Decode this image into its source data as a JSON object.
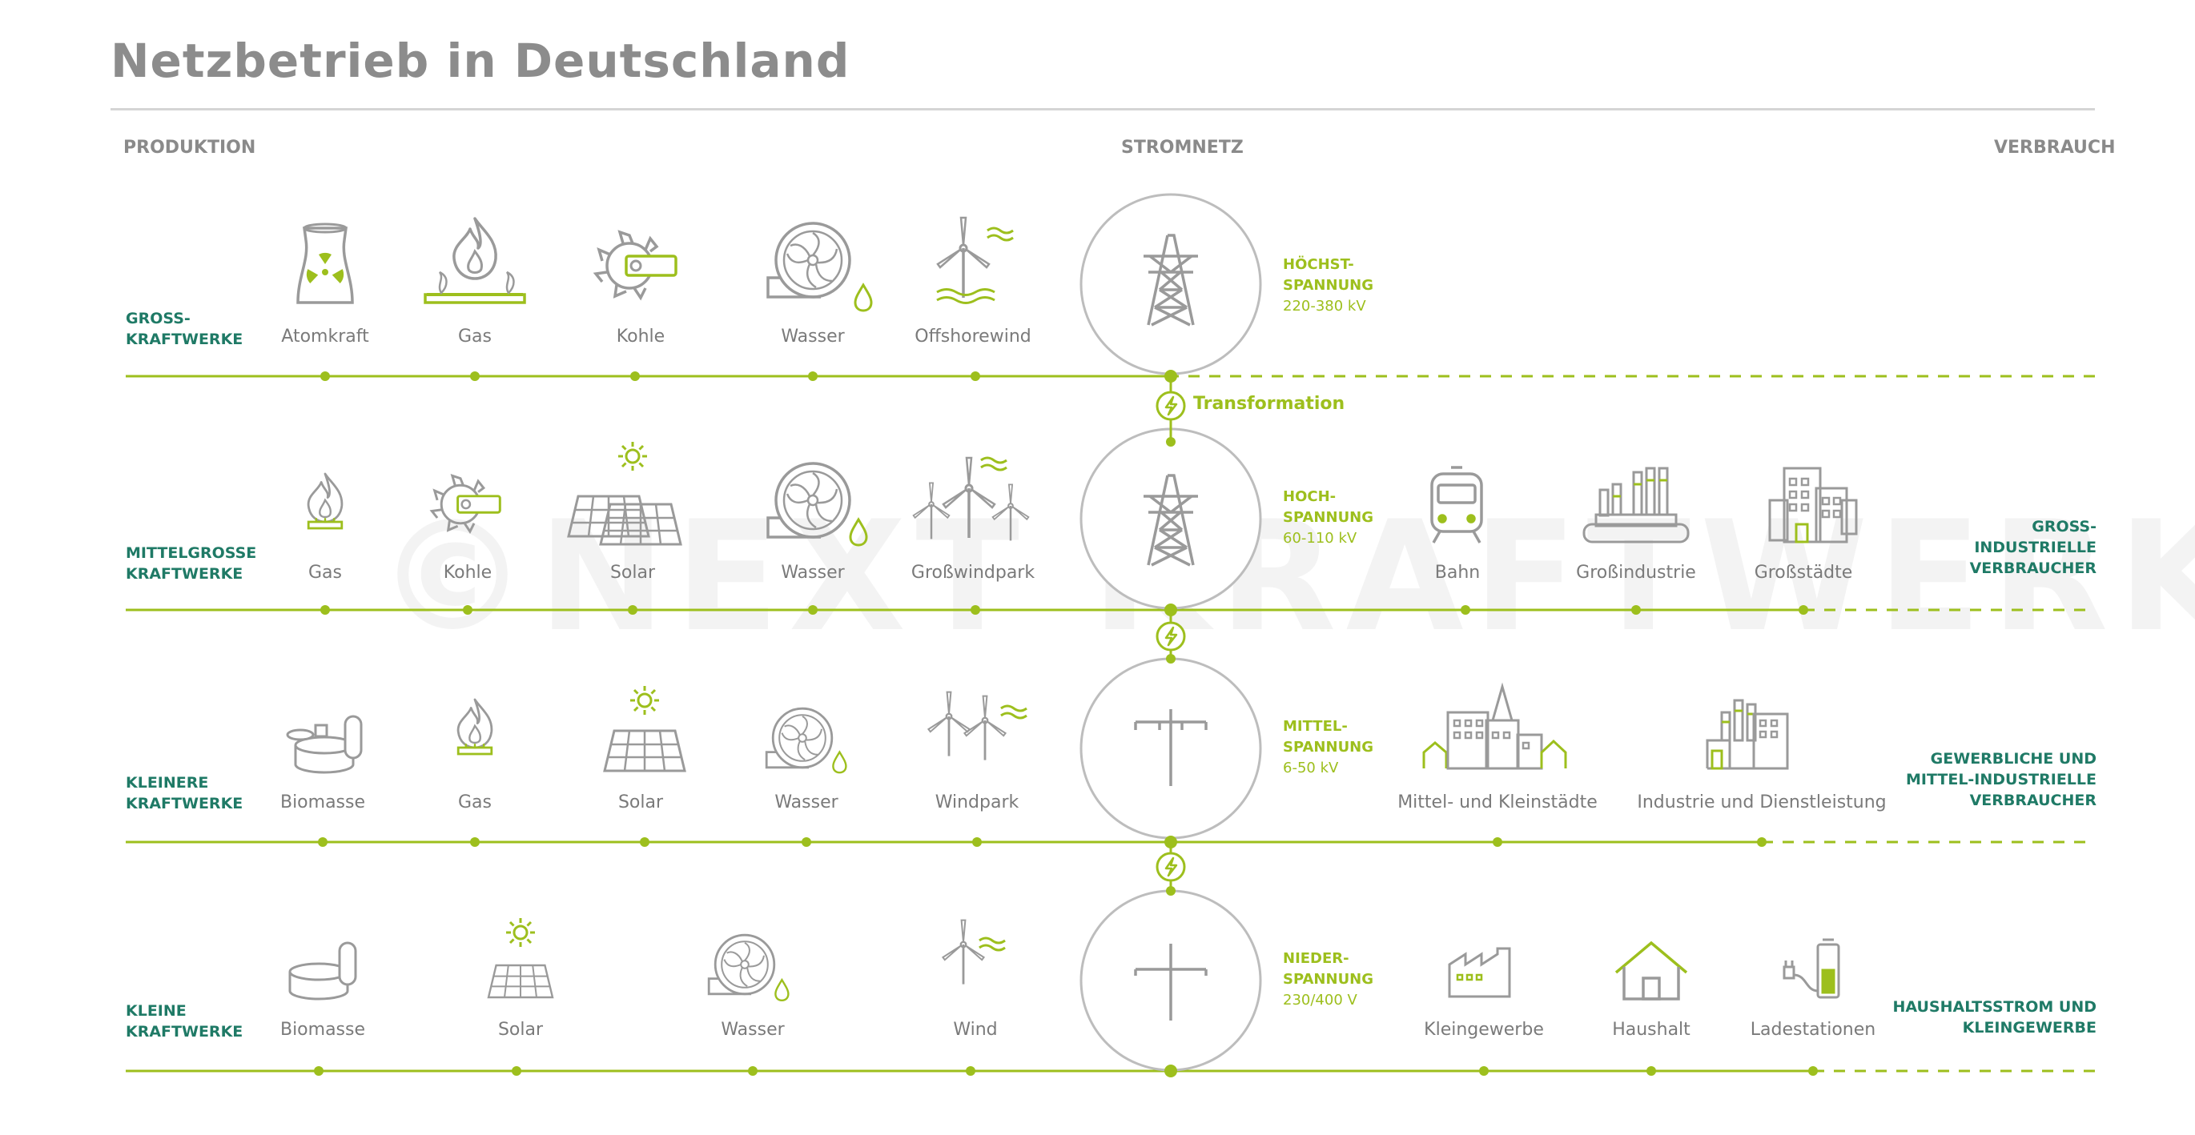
{
  "title": "Netzbetrieb in Deutschland",
  "columns": {
    "production": "PRODUKTION",
    "grid": "STROMNETZ",
    "consumption": "VERBRAUCH"
  },
  "watermark": "©NEXT KRAFTWERKE",
  "rows": [
    {
      "label_l1": "GROSS-",
      "label_l2": "KRAFTWERKE",
      "voltage_l1": "HÖCHST-",
      "voltage_l2": "SPANNUNG",
      "voltage_l3": "220-380 kV",
      "producers": [
        "Atomkraft",
        "Gas",
        "Kohle",
        "Wasser",
        "Offshorewind"
      ],
      "consumers": [],
      "consumer_label": []
    },
    {
      "label_l1": "MITTELGROSSE",
      "label_l2": "KRAFTWERKE",
      "voltage_l1": "HOCH-",
      "voltage_l2": "SPANNUNG",
      "voltage_l3": "60-110 kV",
      "producers": [
        "Gas",
        "Kohle",
        "Solar",
        "Wasser",
        "Großwindpark"
      ],
      "consumers": [
        "Bahn",
        "Großindustrie",
        "Großstädte"
      ],
      "consumer_label": [
        "GROSS-",
        "INDUSTRIELLE",
        "VERBRAUCHER"
      ]
    },
    {
      "label_l1": "KLEINERE",
      "label_l2": "KRAFTWERKE",
      "voltage_l1": "MITTEL-",
      "voltage_l2": "SPANNUNG",
      "voltage_l3": "6-50 kV",
      "producers": [
        "Biomasse",
        "Gas",
        "Solar",
        "Wasser",
        "Windpark"
      ],
      "consumers": [
        "Mittel- und Kleinstädte",
        "Industrie und Dienstleistung"
      ],
      "consumer_label": [
        "GEWERBLICHE UND",
        "MITTEL-INDUSTRIELLE",
        "VERBRAUCHER"
      ]
    },
    {
      "label_l1": "KLEINE",
      "label_l2": "KRAFTWERKE",
      "voltage_l1": "NIEDER-",
      "voltage_l2": "SPANNUNG",
      "voltage_l3": "230/400 V",
      "producers": [
        "Biomasse",
        "Solar",
        "Wasser",
        "Wind"
      ],
      "consumers": [
        "Kleingewerbe",
        "Haushalt",
        "Ladestationen"
      ],
      "consumer_label": [
        "HAUSHALTSSTROM UND",
        "KLEINGEWERBE"
      ]
    }
  ],
  "transformation": "Transformation",
  "colors": {
    "green": "#9dbf1d",
    "teal": "#1f7a66",
    "gray": "#8c8c8c",
    "icon": "#9a9a9a"
  },
  "icons": [
    "nuclear-plant-icon",
    "flame-icon",
    "coal-excavator-icon",
    "water-turbine-icon",
    "offshore-wind-icon",
    "sun-icon",
    "solar-panel-icon",
    "wind-turbine-icon",
    "biomass-tanks-icon",
    "train-icon",
    "factory-icon",
    "city-icon",
    "town-icon",
    "house-icon",
    "charging-station-icon",
    "pylon-icon",
    "pole-icon",
    "lightning-icon"
  ]
}
